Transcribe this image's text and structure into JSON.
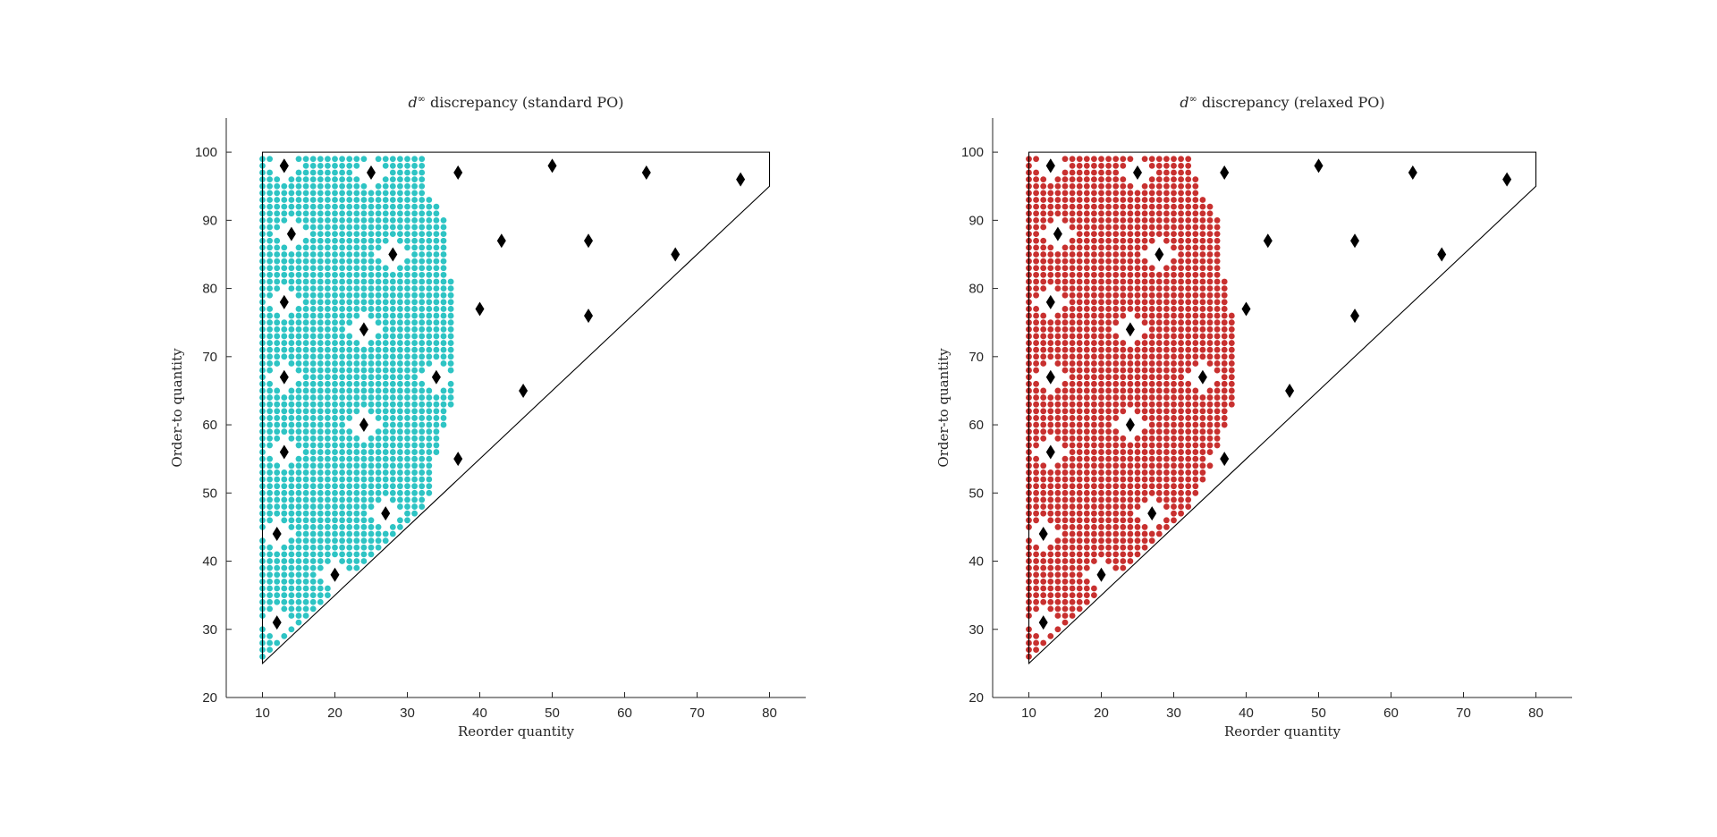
{
  "chart_data": [
    {
      "type": "scatter",
      "title_prefix": "d",
      "title_sup": "∞",
      "title_rest": " discrepancy (standard PO)",
      "xlabel": "Reorder quantity",
      "ylabel": "Order-to quantity",
      "xlim": [
        5,
        85
      ],
      "ylim": [
        20,
        105
      ],
      "xticks": [
        10,
        20,
        30,
        40,
        50,
        60,
        70,
        80
      ],
      "yticks": [
        20,
        30,
        40,
        50,
        60,
        70,
        80,
        90,
        100
      ],
      "fill_color": "#2ec4c4",
      "feasible_region": [
        [
          10,
          25
        ],
        [
          10,
          100
        ],
        [
          80,
          100
        ],
        [
          80,
          95
        ]
      ],
      "discrepancy_region": [
        [
          10,
          25
        ],
        [
          10,
          100
        ],
        [
          32,
          100
        ],
        [
          33,
          94
        ],
        [
          35,
          91
        ],
        [
          36,
          82
        ],
        [
          37,
          78
        ],
        [
          37,
          72
        ],
        [
          36,
          62
        ],
        [
          35,
          59
        ],
        [
          34,
          55
        ],
        [
          33,
          49
        ]
      ],
      "markers": {
        "x": [
          12,
          12,
          13,
          13,
          13,
          13,
          14,
          13,
          20,
          24,
          24,
          25,
          27,
          28,
          34,
          37,
          37,
          40,
          43,
          46,
          50,
          55,
          55,
          63,
          67,
          76
        ],
        "y": [
          31,
          44,
          56,
          67,
          78,
          98,
          88,
          98,
          38,
          60,
          74,
          97,
          47,
          85,
          67,
          97,
          55,
          77,
          87,
          65,
          98,
          87,
          76,
          97,
          85,
          96
        ]
      }
    },
    {
      "type": "scatter",
      "title_prefix": "d",
      "title_sup": "∞",
      "title_rest": " discrepancy (relaxed PO)",
      "xlabel": "Reorder quantity",
      "ylabel": "Order-to quantity",
      "xlim": [
        5,
        85
      ],
      "ylim": [
        20,
        105
      ],
      "xticks": [
        10,
        20,
        30,
        40,
        50,
        60,
        70,
        80
      ],
      "yticks": [
        20,
        30,
        40,
        50,
        60,
        70,
        80,
        90,
        100
      ],
      "fill_color": "#c8302f",
      "feasible_region": [
        [
          10,
          25
        ],
        [
          10,
          100
        ],
        [
          80,
          100
        ],
        [
          80,
          95
        ]
      ],
      "discrepancy_region": [
        [
          10,
          25
        ],
        [
          10,
          100
        ],
        [
          32,
          100
        ],
        [
          34,
          94
        ],
        [
          36,
          91
        ],
        [
          37,
          82
        ],
        [
          38,
          78
        ],
        [
          39,
          72
        ],
        [
          38,
          62
        ],
        [
          37,
          59
        ],
        [
          36,
          55
        ],
        [
          33,
          49
        ]
      ],
      "markers": {
        "x": [
          12,
          12,
          13,
          13,
          13,
          13,
          14,
          13,
          20,
          24,
          24,
          25,
          27,
          28,
          34,
          37,
          37,
          40,
          43,
          46,
          50,
          55,
          55,
          63,
          67,
          76
        ],
        "y": [
          31,
          44,
          56,
          67,
          78,
          98,
          88,
          98,
          38,
          60,
          74,
          97,
          47,
          85,
          67,
          97,
          55,
          77,
          87,
          65,
          98,
          87,
          76,
          97,
          85,
          96
        ]
      }
    }
  ]
}
